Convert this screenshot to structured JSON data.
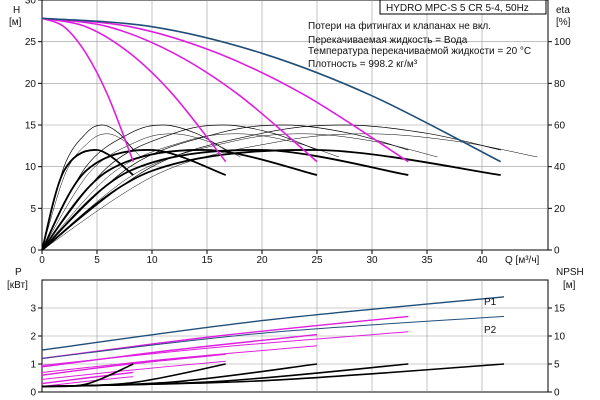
{
  "title": "HYDRO MPC-S 5 CR 5-4, 50Hz",
  "notes": [
    "Потери на фитингах и клапанах не вкл.",
    "Перекачиваемая жидкость = Вода",
    "Температура перекачиваемой жидкости = 20 °C",
    "Плотность = 998.2 кг/м³"
  ],
  "colors": {
    "head_blue": "#1f4e79",
    "head_magenta": "#e01ee0",
    "black": "#000000",
    "grid": "#9a9a9a"
  },
  "chart_data": [
    {
      "type": "line",
      "panel": "top",
      "xlabel": "Q [м³/ч]",
      "ylabel_left": [
        "H",
        "[м]"
      ],
      "ylabel_right": [
        "eta",
        "[%]"
      ],
      "xlim": [
        0,
        46
      ],
      "ylim_left": [
        0,
        30
      ],
      "ylim_right": [
        0,
        120
      ],
      "x_ticks": [
        0,
        5,
        10,
        15,
        20,
        25,
        30,
        35,
        40
      ],
      "y_ticks_left": [
        0,
        5,
        10,
        15,
        20,
        25,
        30
      ],
      "y_ticks_right": [
        0,
        20,
        40,
        60,
        80,
        100
      ],
      "grid": true,
      "head_curves": [
        {
          "pumps": 1,
          "color": "magenta",
          "x": [
            0,
            2,
            4,
            6,
            8.3
          ],
          "y": [
            27.8,
            26.8,
            23.6,
            18.5,
            10.6
          ]
        },
        {
          "pumps": 2,
          "color": "magenta",
          "x": [
            0,
            4,
            8,
            12,
            16.7
          ],
          "y": [
            27.8,
            26.8,
            23.6,
            18.5,
            10.6
          ]
        },
        {
          "pumps": 3,
          "color": "magenta",
          "x": [
            0,
            6,
            12,
            18,
            25
          ],
          "y": [
            27.8,
            26.8,
            23.6,
            18.5,
            10.6
          ]
        },
        {
          "pumps": 4,
          "color": "magenta",
          "x": [
            0,
            8,
            16,
            24,
            33.3
          ],
          "y": [
            27.8,
            26.8,
            23.6,
            18.5,
            10.6
          ]
        },
        {
          "pumps": 5,
          "color": "blue",
          "x": [
            0,
            10,
            20,
            30,
            41.7
          ],
          "y": [
            27.8,
            26.8,
            23.6,
            18.5,
            10.6
          ]
        }
      ],
      "efficiency_curves_pct": [
        {
          "pumps": 1,
          "x": [
            0,
            2,
            4,
            5.5,
            7,
            8.3
          ],
          "y": [
            0,
            40,
            56,
            60,
            56,
            48
          ]
        },
        {
          "pumps": 2,
          "x": [
            0,
            4,
            8,
            11,
            14,
            16.7
          ],
          "y": [
            0,
            40,
            56,
            60,
            56,
            48
          ]
        },
        {
          "pumps": 3,
          "x": [
            0,
            6,
            12,
            16.5,
            21,
            25
          ],
          "y": [
            0,
            40,
            56,
            60,
            56,
            48
          ]
        },
        {
          "pumps": 4,
          "x": [
            0,
            8,
            16,
            22,
            28,
            33.3
          ],
          "y": [
            0,
            40,
            56,
            60,
            56,
            48
          ]
        },
        {
          "pumps": 5,
          "x": [
            0,
            10,
            20,
            27.5,
            35,
            41.7
          ],
          "y": [
            0,
            40,
            56,
            60,
            56,
            48
          ]
        }
      ],
      "bold_black_curves": [
        {
          "pumps": 1,
          "x": [
            0,
            2,
            5,
            8.3
          ],
          "y": [
            0,
            9.5,
            12,
            9
          ]
        },
        {
          "pumps": 2,
          "x": [
            0,
            4,
            10,
            16.7
          ],
          "y": [
            0,
            9.5,
            12,
            9
          ]
        },
        {
          "pumps": 3,
          "x": [
            0,
            6,
            15,
            25
          ],
          "y": [
            0,
            9.5,
            12,
            9
          ]
        },
        {
          "pumps": 4,
          "x": [
            0,
            8,
            20,
            33.3
          ],
          "y": [
            0,
            9.5,
            12,
            9
          ]
        },
        {
          "pumps": 5,
          "x": [
            0,
            10,
            25,
            41.7
          ],
          "y": [
            0,
            9.5,
            12,
            9
          ]
        }
      ]
    },
    {
      "type": "line",
      "panel": "bottom",
      "xlim": [
        0,
        46
      ],
      "ylabel_left": [
        "P",
        "[кВт]"
      ],
      "ylabel_right": [
        "NPSH",
        "[м]"
      ],
      "ylim_left": [
        0,
        4
      ],
      "ylim_right": [
        0,
        20
      ],
      "y_ticks_left": [
        0,
        1,
        2,
        3
      ],
      "y_ticks_right": [
        0,
        5,
        10,
        15
      ],
      "grid": true,
      "series_labels": [
        "P1",
        "P2"
      ],
      "power_p1": [
        {
          "pumps": 1,
          "color": "magenta",
          "x": [
            0,
            4,
            8.3
          ],
          "y": [
            0.3,
            0.5,
            0.7
          ]
        },
        {
          "pumps": 2,
          "color": "magenta",
          "x": [
            0,
            8,
            16.7
          ],
          "y": [
            0.6,
            1.0,
            1.35
          ]
        },
        {
          "pumps": 3,
          "color": "magenta",
          "x": [
            0,
            12,
            25
          ],
          "y": [
            0.9,
            1.5,
            2.05
          ]
        },
        {
          "pumps": 4,
          "color": "magenta",
          "x": [
            0,
            16,
            33.3
          ],
          "y": [
            1.2,
            2.0,
            2.7
          ]
        },
        {
          "pumps": 5,
          "color": "blue",
          "x": [
            0,
            20,
            42
          ],
          "y": [
            1.5,
            2.55,
            3.4
          ]
        }
      ],
      "power_p2": [
        {
          "pumps": 1,
          "color": "magenta",
          "x": [
            0,
            4,
            8.3
          ],
          "y": [
            0.2,
            0.38,
            0.55
          ]
        },
        {
          "pumps": 2,
          "color": "magenta",
          "x": [
            0,
            8,
            16.7
          ],
          "y": [
            0.45,
            0.78,
            1.1
          ]
        },
        {
          "pumps": 3,
          "color": "magenta",
          "x": [
            0,
            12,
            25
          ],
          "y": [
            0.7,
            1.2,
            1.65
          ]
        },
        {
          "pumps": 4,
          "color": "magenta",
          "x": [
            0,
            16,
            33.3
          ],
          "y": [
            0.95,
            1.6,
            2.15
          ]
        },
        {
          "pumps": 5,
          "color": "blue",
          "x": [
            0,
            20,
            42
          ],
          "y": [
            1.2,
            2.1,
            2.7
          ]
        }
      ],
      "npsh_m": [
        {
          "pumps": 1,
          "x": [
            0,
            4,
            8.3
          ],
          "y": [
            1.0,
            1.4,
            5.0
          ]
        },
        {
          "pumps": 2,
          "x": [
            0,
            8,
            16.7
          ],
          "y": [
            1.0,
            1.6,
            5.0
          ]
        },
        {
          "pumps": 3,
          "x": [
            0,
            12,
            25
          ],
          "y": [
            1.0,
            1.8,
            5.0
          ]
        },
        {
          "pumps": 4,
          "x": [
            0,
            16,
            33.3
          ],
          "y": [
            1.0,
            1.9,
            5.0
          ]
        },
        {
          "pumps": 5,
          "x": [
            0,
            20,
            42
          ],
          "y": [
            1.0,
            2.0,
            5.0
          ]
        }
      ]
    }
  ]
}
